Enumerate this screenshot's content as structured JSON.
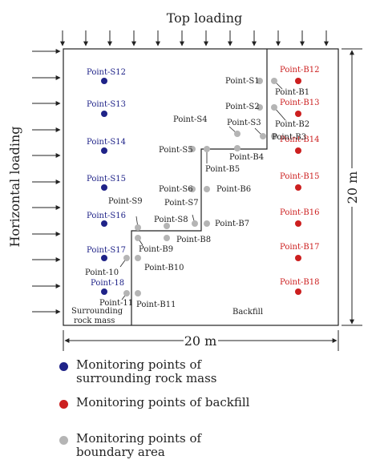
{
  "title_top": "Top loading",
  "title_left": "Horizontal loading",
  "dim_width": "20 m",
  "dim_height": "20 m",
  "region_rock": "Surrounding\nrock mass",
  "region_backfill": "Backfill",
  "colors": {
    "rock": "#1f2388",
    "backfill": "#cc1f1f",
    "boundary": "#b5b5b5",
    "label_rock": "#1f2388",
    "label_backfill": "#cc1f1f",
    "label_boundary": "#222222"
  },
  "rock_points": [
    "Point-S12",
    "Point-S13",
    "Point-S14",
    "Point-S15",
    "Point-S16",
    "Point-S17",
    "Point-18"
  ],
  "backfill_points": [
    "Point-B12",
    "Point-B13",
    "Point-B14",
    "Point-B15",
    "Point-B16",
    "Point-B17",
    "Point-B18"
  ],
  "boundary_points": [
    "Point-S1",
    "Point-B1",
    "Point-S2",
    "Point-B2",
    "Point-S3",
    "Point-B3",
    "Point-S4",
    "Point-B4",
    "Point-S5",
    "Point-B5",
    "Point-S6",
    "Point-B6",
    "Point-S7",
    "Point-B7",
    "Point-S8",
    "Point-B8",
    "Point-S9",
    "Point-B9",
    "Point-10",
    "Point-B10",
    "Point-11",
    "Point-B11"
  ],
  "legend": [
    {
      "label": "Monitoring points of surrounding rock mass",
      "color": "#1f2388"
    },
    {
      "label": "Monitoring points of backfill",
      "color": "#cc1f1f"
    },
    {
      "label": "Monitoring points of boundary area",
      "color": "#b5b5b5"
    }
  ]
}
